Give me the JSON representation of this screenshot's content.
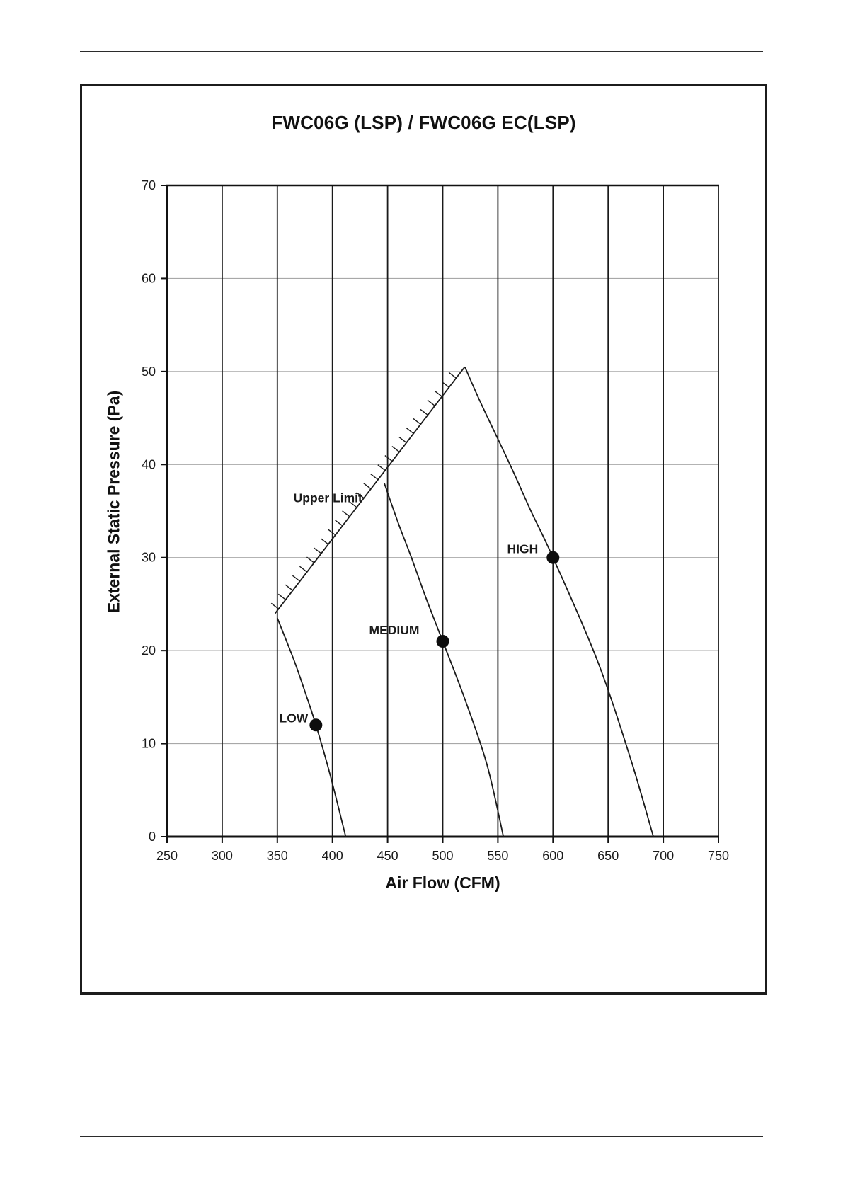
{
  "document": {
    "header_rule": true,
    "footer_rule": true
  },
  "chart_data": {
    "type": "line",
    "title": "FWC06G (LSP) / FWC06G EC(LSP)",
    "xlabel": "Air Flow (CFM)",
    "ylabel": "External Static Pressure (Pa)",
    "xlim": [
      250,
      750
    ],
    "ylim": [
      0,
      70
    ],
    "xticks": [
      250,
      300,
      350,
      400,
      450,
      500,
      550,
      600,
      650,
      700,
      750
    ],
    "yticks": [
      0,
      10,
      20,
      30,
      40,
      50,
      60,
      70
    ],
    "legend": "none",
    "grid": {
      "vertical_color": "#1a1a1a",
      "horizontal_color": "#a8a8a8"
    },
    "line_color": "#1a1a1a",
    "marker_color": "#0d0d0d",
    "marker_radius_px": 9,
    "upper_limit": {
      "label": "Upper Limit",
      "from": {
        "x": 348,
        "y": 24
      },
      "to": {
        "x": 520,
        "y": 50.5
      },
      "hatch_side": "upper-left",
      "hatch_count": 26,
      "label_anchor": {
        "x": 429,
        "y": 36.4
      }
    },
    "series": [
      {
        "name": "LOW",
        "operating_point": {
          "x": 385,
          "y": 12
        },
        "points": [
          [
            350,
            23.5
          ],
          [
            365,
            19
          ],
          [
            375,
            15.6
          ],
          [
            385,
            12
          ],
          [
            398,
            6.6
          ],
          [
            412,
            0
          ]
        ],
        "label_offset": {
          "dx": -11,
          "dy": -4
        }
      },
      {
        "name": "MEDIUM",
        "operating_point": {
          "x": 500,
          "y": 21
        },
        "points": [
          [
            447,
            38
          ],
          [
            460,
            33.6
          ],
          [
            471,
            30.2
          ],
          [
            485,
            25.6
          ],
          [
            500,
            21
          ],
          [
            520,
            14.8
          ],
          [
            540,
            7.8
          ],
          [
            555,
            0
          ]
        ],
        "label_offset": {
          "dx": -33,
          "dy": -10
        }
      },
      {
        "name": "HIGH",
        "operating_point": {
          "x": 600,
          "y": 30
        },
        "points": [
          [
            520,
            50.5
          ],
          [
            535,
            46.5
          ],
          [
            561,
            40
          ],
          [
            580,
            35
          ],
          [
            600,
            30
          ],
          [
            640,
            19
          ],
          [
            670,
            8.5
          ],
          [
            691,
            0
          ]
        ],
        "label_offset": {
          "dx": -21,
          "dy": -6
        }
      }
    ]
  }
}
